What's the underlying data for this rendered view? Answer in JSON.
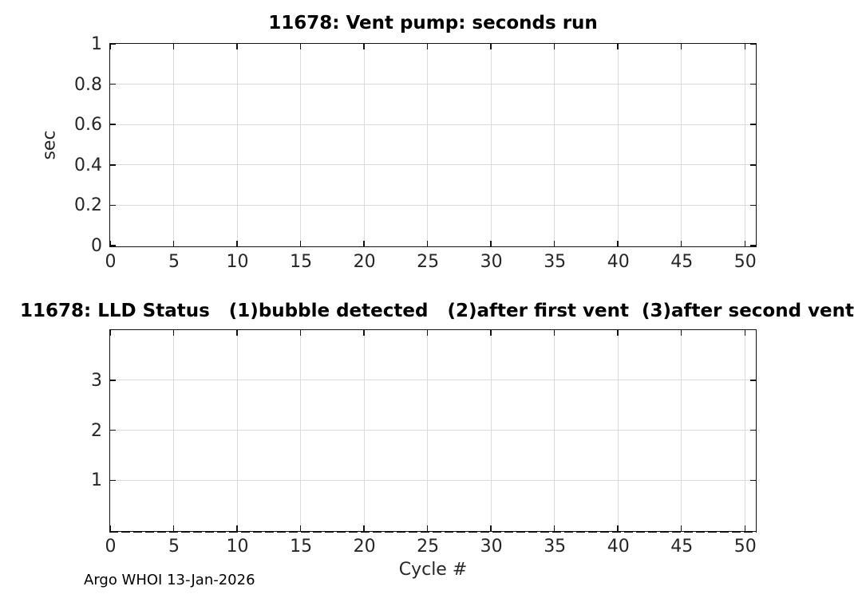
{
  "figure": {
    "footer": "Argo WHOI 13-Jan-2026",
    "background_color": "#ffffff",
    "axis_color": "#111111",
    "grid_color": "#dbdbdb",
    "tick_text_color": "#262626",
    "title_color": "#000000"
  },
  "chart_data": [
    {
      "type": "line",
      "title": "11678: Vent pump: seconds run",
      "xlabel": "",
      "ylabel": "sec",
      "xlim": [
        0,
        50.8
      ],
      "ylim": [
        0,
        1
      ],
      "xticks": [
        0,
        5,
        10,
        15,
        20,
        25,
        30,
        35,
        40,
        45,
        50
      ],
      "xtick_labels": [
        "0",
        "5",
        "10",
        "15",
        "20",
        "25",
        "30",
        "35",
        "40",
        "45",
        "50"
      ],
      "yticks": [
        0,
        0.2,
        0.4,
        0.6,
        0.8,
        1
      ],
      "ytick_labels": [
        "0",
        "0.2",
        "0.4",
        "0.6",
        "0.8",
        "1"
      ],
      "grid": true,
      "legend": null,
      "series": []
    },
    {
      "type": "line",
      "title": "11678: LLD Status   (1)bubble detected   (2)after first vent  (3)after second vent",
      "xlabel": "Cycle #",
      "ylabel": "",
      "xlim": [
        0,
        50.8
      ],
      "ylim": [
        0,
        4
      ],
      "xticks": [
        0,
        5,
        10,
        15,
        20,
        25,
        30,
        35,
        40,
        45,
        50
      ],
      "xtick_labels": [
        "0",
        "5",
        "10",
        "15",
        "20",
        "25",
        "30",
        "35",
        "40",
        "45",
        "50"
      ],
      "yticks": [
        1,
        2,
        3
      ],
      "ytick_labels": [
        "1",
        "2",
        "3"
      ],
      "grid": true,
      "legend": null,
      "series": [],
      "reference_line": {
        "y": 0,
        "style": "dashed",
        "color": "#000000"
      }
    }
  ]
}
